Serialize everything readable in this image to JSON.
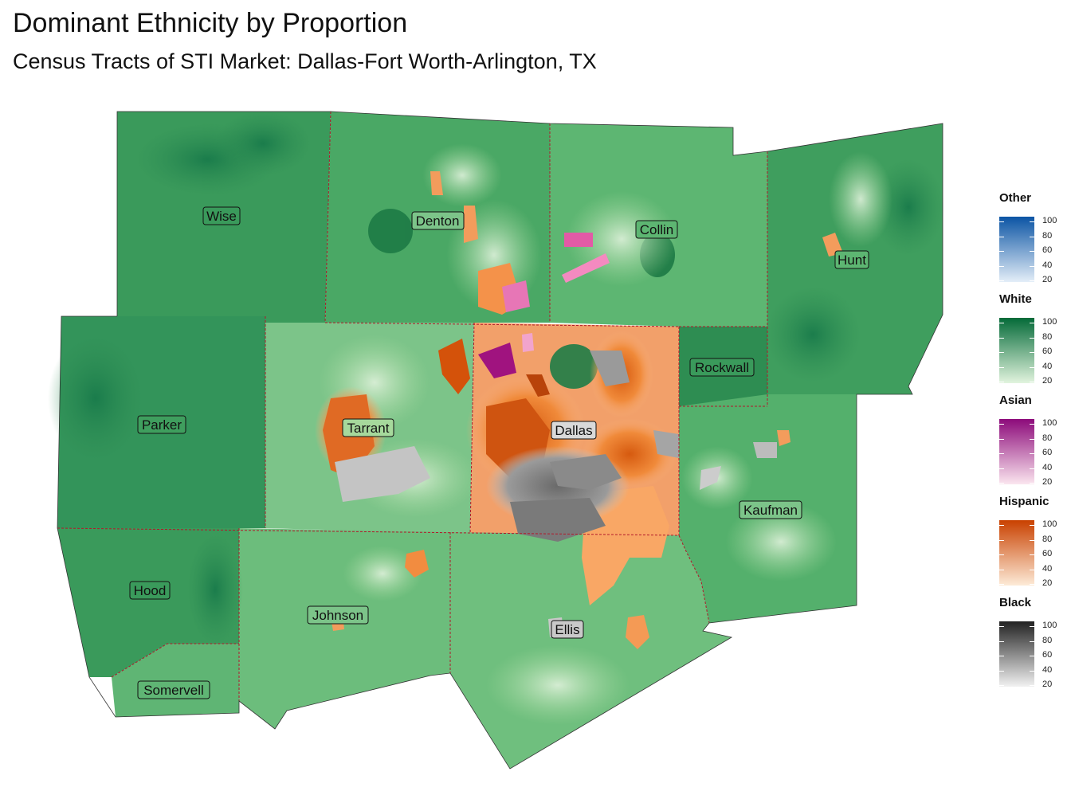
{
  "title": "Dominant Ethnicity by Proportion",
  "subtitle": "Census Tracts of STI Market: Dallas-Fort Worth-Arlington, TX",
  "counties": [
    "Wise",
    "Denton",
    "Collin",
    "Hunt",
    "Parker",
    "Tarrant",
    "Dallas",
    "Rockwall",
    "Kaufman",
    "Hood",
    "Johnson",
    "Ellis",
    "Somervell"
  ],
  "legend": [
    {
      "name": "Other",
      "low": "#e4eef8",
      "high": "#0b54a4",
      "ticks": [
        "100",
        "80",
        "60",
        "40",
        "20"
      ]
    },
    {
      "name": "White",
      "low": "#e2f4de",
      "high": "#046a38",
      "ticks": [
        "100",
        "80",
        "60",
        "40",
        "20"
      ]
    },
    {
      "name": "Asian",
      "low": "#fbe6ef",
      "high": "#8c0a7a",
      "ticks": [
        "100",
        "80",
        "60",
        "40",
        "20"
      ]
    },
    {
      "name": "Hispanic",
      "low": "#fdebd8",
      "high": "#c94100",
      "ticks": [
        "100",
        "80",
        "60",
        "40",
        "20"
      ]
    },
    {
      "name": "Black",
      "low": "#f2f2f2",
      "high": "#222222",
      "ticks": [
        "100",
        "80",
        "60",
        "40",
        "20"
      ]
    }
  ]
}
